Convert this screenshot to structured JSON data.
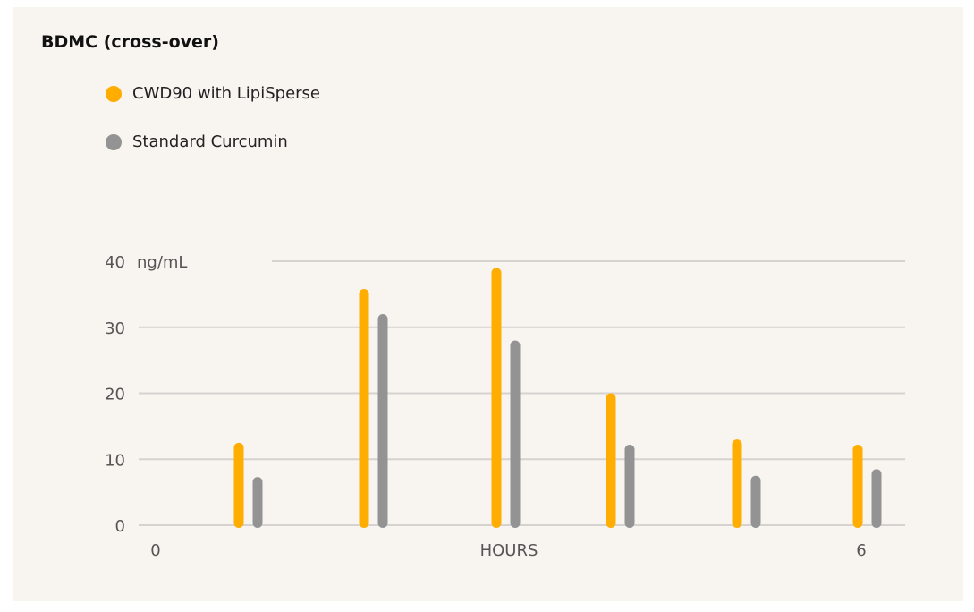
{
  "chart_data": {
    "type": "bar",
    "title": "BDMC (cross-over)",
    "ylabel": "ng/mL",
    "xlabel": "HOURS",
    "x_tick_labels": [
      "0",
      "6"
    ],
    "y_ticks": [
      0,
      10,
      20,
      30,
      40
    ],
    "ylim": [
      0,
      40
    ],
    "grid": true,
    "legend_position": "top-left",
    "categories": [
      "1",
      "2",
      "3",
      "4",
      "5",
      "6"
    ],
    "series": [
      {
        "name": "CWD90 with LipiSperse",
        "color": "#ffad00",
        "values": [
          12.5,
          35.8,
          39,
          20,
          13,
          12.2
        ]
      },
      {
        "name": "Standard Curcumin",
        "color": "#939393",
        "values": [
          7.3,
          32,
          28,
          12.2,
          7.5,
          8.5
        ]
      }
    ]
  }
}
